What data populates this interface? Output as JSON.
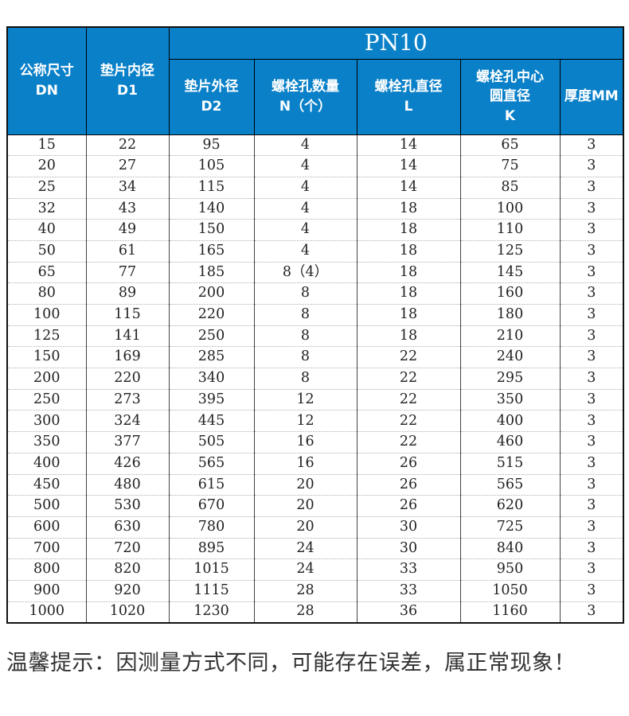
{
  "table": {
    "group_header": "PN10",
    "col_dn": "公称尺寸\nDN",
    "col_d1": "垫片内径\nD1",
    "sub_headers": [
      "垫片外径\nD2",
      "螺栓孔数量\nN（个）",
      "螺栓孔直径\nL",
      "螺栓孔中心\n圆直径\nK",
      "厚度MM"
    ],
    "rows": [
      [
        "15",
        "22",
        "95",
        "4",
        "14",
        "65",
        "3"
      ],
      [
        "20",
        "27",
        "105",
        "4",
        "14",
        "75",
        "3"
      ],
      [
        "25",
        "34",
        "115",
        "4",
        "14",
        "85",
        "3"
      ],
      [
        "32",
        "43",
        "140",
        "4",
        "18",
        "100",
        "3"
      ],
      [
        "40",
        "49",
        "150",
        "4",
        "18",
        "110",
        "3"
      ],
      [
        "50",
        "61",
        "165",
        "4",
        "18",
        "125",
        "3"
      ],
      [
        "65",
        "77",
        "185",
        "8（4）",
        "18",
        "145",
        "3"
      ],
      [
        "80",
        "89",
        "200",
        "8",
        "18",
        "160",
        "3"
      ],
      [
        "100",
        "115",
        "220",
        "8",
        "18",
        "180",
        "3"
      ],
      [
        "125",
        "141",
        "250",
        "8",
        "18",
        "210",
        "3"
      ],
      [
        "150",
        "169",
        "285",
        "8",
        "22",
        "240",
        "3"
      ],
      [
        "200",
        "220",
        "340",
        "8",
        "22",
        "295",
        "3"
      ],
      [
        "250",
        "273",
        "395",
        "12",
        "22",
        "350",
        "3"
      ],
      [
        "300",
        "324",
        "445",
        "12",
        "22",
        "400",
        "3"
      ],
      [
        "350",
        "377",
        "505",
        "16",
        "22",
        "460",
        "3"
      ],
      [
        "400",
        "426",
        "565",
        "16",
        "26",
        "515",
        "3"
      ],
      [
        "450",
        "480",
        "615",
        "20",
        "26",
        "565",
        "3"
      ],
      [
        "500",
        "530",
        "670",
        "20",
        "26",
        "620",
        "3"
      ],
      [
        "600",
        "630",
        "780",
        "20",
        "30",
        "725",
        "3"
      ],
      [
        "700",
        "720",
        "895",
        "24",
        "30",
        "840",
        "3"
      ],
      [
        "800",
        "820",
        "1015",
        "24",
        "33",
        "950",
        "3"
      ],
      [
        "900",
        "920",
        "1115",
        "28",
        "33",
        "1050",
        "3"
      ],
      [
        "1000",
        "1020",
        "1230",
        "28",
        "36",
        "1160",
        "3"
      ]
    ]
  },
  "note": "温馨提示：因测量方式不同，可能存在误差，属正常现象！",
  "colors": {
    "header_bg": "#0a80c8",
    "header_text": "#ffffff"
  }
}
